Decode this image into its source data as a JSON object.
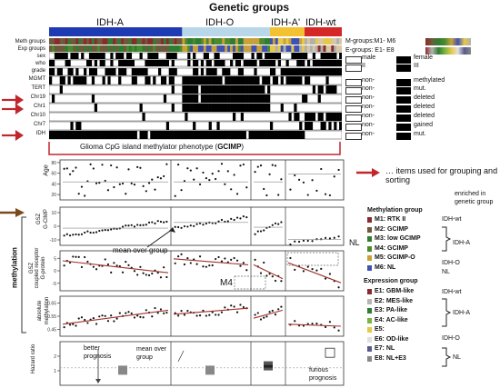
{
  "title": "Genetic groups",
  "groups": [
    "IDH-A",
    "IDH-O",
    "IDH-A'",
    "IDH-wt"
  ],
  "row_labels": [
    "Meth groups",
    "Exp groups",
    "sex",
    "who",
    "grade",
    "MGMT",
    "TERT",
    "Chr19",
    "Chr1",
    "Chr10",
    "Chr7",
    "IDH"
  ],
  "right_legend": {
    "m_groups": "M-groups:M1- M6",
    "e_groups": "E-groups: E1- E8",
    "pairs": [
      {
        "a": "male",
        "b": "female"
      },
      {
        "a": "II",
        "b": "III"
      },
      {
        "a": "non-",
        "b": "methylated"
      },
      {
        "a": "non-",
        "b": "mut."
      },
      {
        "a": "non-",
        "b": "deleted"
      },
      {
        "a": "non-",
        "b": "deleted"
      },
      {
        "a": "non-",
        "b": "deleted"
      },
      {
        "a": "non-",
        "b": "gained"
      },
      {
        "a": "non-",
        "b": "mut."
      }
    ]
  },
  "gcimp_label": {
    "prefix": "Glioma CpG island methylator phenotype (",
    "bold": "GCIMP",
    "suffix": ")"
  },
  "arrow_note": "… items used for grouping and sorting",
  "enriched_header": [
    "enriched in",
    "genetic group"
  ],
  "methylation_group_title": "Methylation group",
  "methylation_groups": [
    {
      "id": "M1:",
      "name": "RTK II",
      "color": "#8b2a2a"
    },
    {
      "id": "M2:",
      "name": "GCIMP",
      "color": "#6d5a3c"
    },
    {
      "id": "M3:",
      "name": "low GCIMP",
      "color": "#2e7d32"
    },
    {
      "id": "M4:",
      "name": "GCIMP",
      "color": "#4c8a2e"
    },
    {
      "id": "M5:",
      "name": "GCIMP-O",
      "color": "#c8a13a"
    },
    {
      "id": "M6:",
      "name": "NL",
      "color": "#3f51b5"
    }
  ],
  "methylation_enriched": [
    "IDH-wt",
    "IDH-A",
    "IDH-O",
    "NL"
  ],
  "expression_group_title": "Expression group",
  "expression_groups": [
    {
      "id": "E1:",
      "name": "GBM-like",
      "color": "#8b2a2a"
    },
    {
      "id": "E2:",
      "name": "MES-like",
      "color": "#b5b5b5"
    },
    {
      "id": "E3:",
      "name": "PA-like",
      "color": "#2e7d32"
    },
    {
      "id": "E4:",
      "name": "AC-like",
      "color": "#7cb342"
    },
    {
      "id": "E5:",
      "name": "",
      "color": "#e6c84a"
    },
    {
      "id": "E6:",
      "name": "OD-like",
      "color": "#e0e0e0"
    },
    {
      "id": "E7:",
      "name": "NL",
      "color": "#5a5a8a"
    },
    {
      "id": "E8:",
      "name": "NL+E3",
      "color": "#888888"
    }
  ],
  "expression_enriched": [
    "IDH-wt",
    "IDH-A",
    "IDH-O",
    "NL"
  ],
  "panel_labels": {
    "age": "Age",
    "gsz_cimp": [
      "G-CIMP",
      "GSZ"
    ],
    "gsz_cc": [
      "G-protein",
      "coupled receptor",
      "GSZ"
    ],
    "absolute": [
      "absolute",
      "methylation"
    ],
    "hazard": [
      "Hazard ratio"
    ],
    "methylation_side": "methylation"
  },
  "annotations": {
    "mean_over_group": "mean over group",
    "nl": "NL",
    "m4": "M4",
    "better_prognosis": [
      "better",
      "prognosis"
    ],
    "mean_over_group2": [
      "mean over",
      "group"
    ],
    "furious_prognosis": [
      "furious",
      "prognosis"
    ]
  },
  "colors": {
    "idh_a": "#1f3bb3",
    "idh_o": "#b8d8ea",
    "idh_ap": "#f2c232",
    "idh_wt": "#d62728",
    "arrow": "#c0272d",
    "brown_arrow": "#7a4a1e",
    "trend": "#a0322a"
  },
  "chart_data": [
    {
      "type": "scatter",
      "panel": "Age",
      "ylabel": "Age",
      "yticks": [
        20,
        40,
        60,
        80
      ],
      "ylim": [
        10,
        85
      ]
    },
    {
      "type": "scatter",
      "panel": "G-CIMP GSZ",
      "ylabel": "GSZ G-CIMP",
      "yticks": [
        -10,
        0,
        10
      ],
      "ylim": [
        -14,
        14
      ]
    },
    {
      "type": "scatter",
      "panel": "G-protein coupled receptor GSZ",
      "ylabel": "GSZ G-protein coupled receptor",
      "yticks": [
        -5,
        0,
        5
      ],
      "ylim": [
        -8,
        8
      ]
    },
    {
      "type": "scatter",
      "panel": "absolute methylation",
      "ylabel": "absolute methylation",
      "yticks": [
        0.45,
        0.55,
        0.65
      ],
      "ylim": [
        0.4,
        0.7
      ]
    },
    {
      "type": "bar",
      "panel": "Hazard ratio",
      "ylabel": "Hazard ratio",
      "yticks": [
        1,
        2
      ],
      "ylim": [
        0,
        3
      ]
    }
  ]
}
